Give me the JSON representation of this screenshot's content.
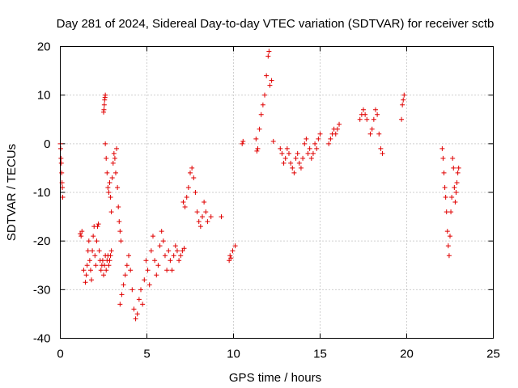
{
  "chart_data": {
    "type": "scatter",
    "title": "Day 281 of 2024, Sidereal Day-to-day VTEC variation (SDTVAR) for receiver sctb",
    "xlabel": "GPS time / hours",
    "ylabel": "SDTVAR / TECUs",
    "xlim": [
      0,
      25
    ],
    "ylim": [
      -40,
      20
    ],
    "xticks": [
      0,
      5,
      10,
      15,
      20,
      25
    ],
    "yticks": [
      -40,
      -30,
      -20,
      -10,
      0,
      10,
      20
    ],
    "xtick_labels": [
      "0",
      "5",
      "10",
      "15",
      "20",
      "25"
    ],
    "ytick_labels": [
      "-40",
      "-30",
      "-20",
      "-10",
      "0",
      "10",
      "20"
    ],
    "grid": true,
    "marker": "+",
    "color": "#e00000",
    "series": [
      {
        "name": "SDTVAR",
        "segments": [
          {
            "x": [
              0.0,
              0.02,
              0.04,
              0.06,
              0.08,
              0.1,
              0.12,
              0.14
            ],
            "y": [
              0,
              -1,
              -3,
              -4,
              -6,
              -8,
              -9,
              -11
            ]
          },
          {
            "x": [
              1.15,
              1.2,
              1.25,
              1.35,
              1.45,
              1.5,
              1.55,
              1.6,
              1.65,
              1.7,
              1.75,
              1.8,
              1.85,
              1.9,
              1.95,
              2.0,
              2.05,
              2.1,
              2.15,
              2.2,
              2.25,
              2.3,
              2.35,
              2.4,
              2.45,
              2.5,
              2.55,
              2.6,
              2.65,
              2.7,
              2.75,
              2.8,
              2.85,
              2.9,
              2.95
            ],
            "y": [
              -18.5,
              -19,
              -18,
              -26,
              -28.5,
              -27,
              -25,
              -22,
              -20,
              -24,
              -26,
              -28,
              -22,
              -19,
              -17,
              -23,
              -25,
              -20,
              -17,
              -16.5,
              -22,
              -24,
              -26,
              -25,
              -24,
              -27,
              -25,
              -23,
              -26,
              -24,
              -23,
              -25,
              -24,
              -23,
              -22
            ]
          },
          {
            "x": [
              2.5,
              2.52,
              2.54,
              2.56,
              2.58,
              2.6
            ],
            "y": [
              6.5,
              7,
              8,
              9,
              9.5,
              10
            ]
          },
          {
            "x": [
              2.6,
              2.65,
              2.7,
              2.75,
              2.8,
              2.85,
              2.9,
              2.95,
              3.0,
              3.05,
              3.1,
              3.15,
              3.2,
              3.25,
              3.3,
              3.35,
              3.4,
              3.45,
              3.5
            ],
            "y": [
              0,
              -3,
              -6,
              -9,
              -10,
              -8,
              -11,
              -14,
              -7,
              -4,
              -2,
              -3,
              -6,
              -1,
              -9,
              -13,
              -16,
              -18,
              -20
            ]
          },
          {
            "x": [
              3.45,
              3.55,
              3.65,
              3.75,
              3.85,
              3.95,
              4.05,
              4.15,
              4.25,
              4.35,
              4.45,
              4.55,
              4.65,
              4.75,
              4.85,
              4.95,
              5.05,
              5.15,
              5.25,
              5.35,
              5.45,
              5.55,
              5.65,
              5.75,
              5.85,
              5.95,
              6.05,
              6.15,
              6.25,
              6.35,
              6.45,
              6.55,
              6.65,
              6.75,
              6.85,
              6.95,
              7.05,
              7.15
            ],
            "y": [
              -33,
              -31,
              -29,
              -27,
              -25,
              -23,
              -26,
              -30,
              -34,
              -36,
              -35,
              -32,
              -30,
              -33,
              -28,
              -24,
              -26,
              -29,
              -22,
              -19,
              -24,
              -27,
              -25,
              -21,
              -18,
              -20,
              -23,
              -26,
              -22,
              -24,
              -26,
              -23,
              -21,
              -22,
              -24,
              -23,
              -22,
              -21.5
            ]
          },
          {
            "x": [
              7.1,
              7.2,
              7.3,
              7.4,
              7.5,
              7.6,
              7.7,
              7.8,
              7.9,
              8.0,
              8.1,
              8.2,
              8.3,
              8.4,
              8.5,
              8.7
            ],
            "y": [
              -12,
              -13,
              -11,
              -9,
              -6,
              -5,
              -7,
              -10,
              -14,
              -16,
              -17,
              -15,
              -12,
              -14,
              -16,
              -15
            ]
          },
          {
            "x": [
              9.3,
              9.75,
              9.8,
              9.85,
              9.95,
              10.1
            ],
            "y": [
              -15,
              -24,
              -23,
              -23.5,
              -22,
              -21
            ]
          },
          {
            "x": [
              10.5,
              10.55,
              11.3,
              11.35,
              11.4,
              11.5,
              11.6,
              11.7,
              11.8,
              11.9,
              12.0,
              12.05,
              12.1,
              12.2,
              12.3
            ],
            "y": [
              0,
              0.5,
              1,
              -1.5,
              -1,
              3,
              6,
              8,
              10,
              14,
              18,
              19,
              12,
              13,
              0.5
            ]
          },
          {
            "x": [
              12.7,
              12.8,
              12.9,
              13.0,
              13.1,
              13.2,
              13.3,
              13.4,
              13.5,
              13.6,
              13.7,
              13.8,
              13.9,
              14.0,
              14.1,
              14.2,
              14.3,
              14.4,
              14.5,
              14.6,
              14.7,
              14.8,
              14.9,
              15.0
            ],
            "y": [
              -1,
              -2,
              -4,
              -3,
              -1,
              -2,
              -4,
              -5,
              -6,
              -3,
              -2,
              -4,
              -5,
              -3,
              0,
              1,
              -2,
              -1,
              -3,
              -2,
              0,
              -1,
              1,
              2
            ]
          },
          {
            "x": [
              15.5,
              15.6,
              15.7,
              15.8,
              15.9,
              16.0,
              16.1
            ],
            "y": [
              0,
              1,
              2,
              3,
              2,
              3,
              4
            ]
          },
          {
            "x": [
              17.3,
              17.4,
              17.5,
              17.6,
              17.7
            ],
            "y": [
              5,
              6,
              7,
              6,
              5
            ]
          },
          {
            "x": [
              17.9,
              18.0,
              18.1,
              18.2,
              18.3,
              18.4,
              18.5,
              18.6
            ],
            "y": [
              2,
              3,
              5,
              7,
              6,
              2,
              -1,
              -2
            ]
          },
          {
            "x": [
              19.7,
              19.75,
              19.8,
              19.85
            ],
            "y": [
              5,
              8,
              9,
              10
            ]
          },
          {
            "x": [
              22.05,
              22.1,
              22.15,
              22.2,
              22.25,
              22.3,
              22.35,
              22.4,
              22.45,
              22.5,
              22.55,
              22.6,
              22.65,
              22.7,
              22.75,
              22.8,
              22.85,
              22.9,
              22.95,
              23.0
            ],
            "y": [
              -1,
              -3,
              -6,
              -9,
              -11,
              -14,
              -18,
              -21,
              -23,
              -19,
              -14,
              -11,
              -3,
              -5,
              -9,
              -12,
              -10,
              -8,
              -6,
              -5
            ]
          }
        ]
      }
    ]
  }
}
